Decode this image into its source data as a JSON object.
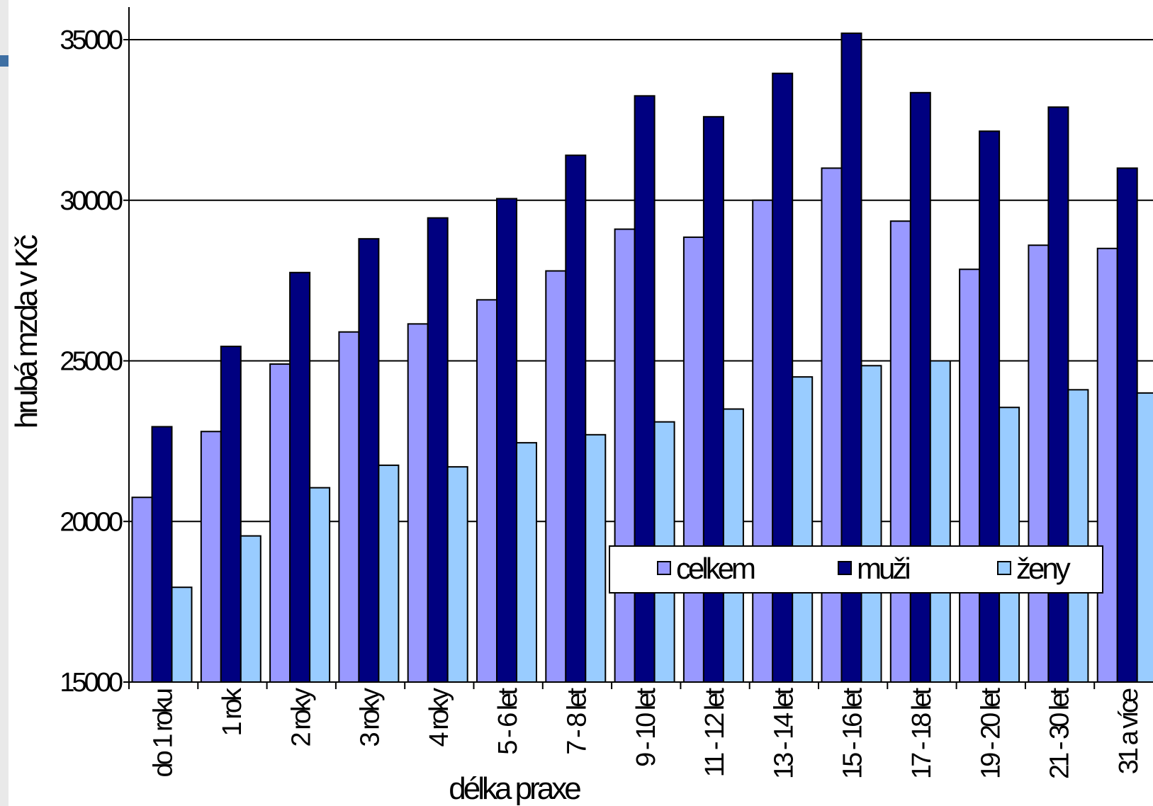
{
  "chart_data": {
    "type": "bar",
    "title": "",
    "xlabel": "délka praxe",
    "ylabel": "hrubá mzda v Kč",
    "ylim": [
      15000,
      35000
    ],
    "yticks": [
      15000,
      20000,
      25000,
      30000,
      35000
    ],
    "grid": true,
    "legend_position": "bottom-right",
    "categories": [
      "do 1 roku",
      "1 rok",
      "2 roky",
      "3 roky",
      "4 roky",
      "5 - 6 let",
      "7 - 8 let",
      "9 - 10 let",
      "11 - 12 let",
      "13 - 14 let",
      "15 - 16 let",
      "17 - 18 let",
      "19 - 20 let",
      "21 - 30 let",
      "31 a více"
    ],
    "series": [
      {
        "name": "celkem",
        "color": "#9999ff",
        "values": [
          20750,
          22800,
          24900,
          25900,
          26150,
          26900,
          27800,
          29100,
          28850,
          30000,
          31000,
          29350,
          27850,
          28600,
          28500
        ]
      },
      {
        "name": "muži",
        "color": "#000080",
        "values": [
          22950,
          25450,
          27750,
          28800,
          29450,
          30050,
          31400,
          33250,
          32600,
          33950,
          35200,
          33350,
          32150,
          32900,
          31000
        ]
      },
      {
        "name": "ženy",
        "color": "#99ccff",
        "values": [
          17950,
          19550,
          21050,
          21750,
          21700,
          22450,
          22700,
          23100,
          23500,
          24500,
          24850,
          25000,
          23550,
          24100,
          24000
        ]
      }
    ]
  }
}
